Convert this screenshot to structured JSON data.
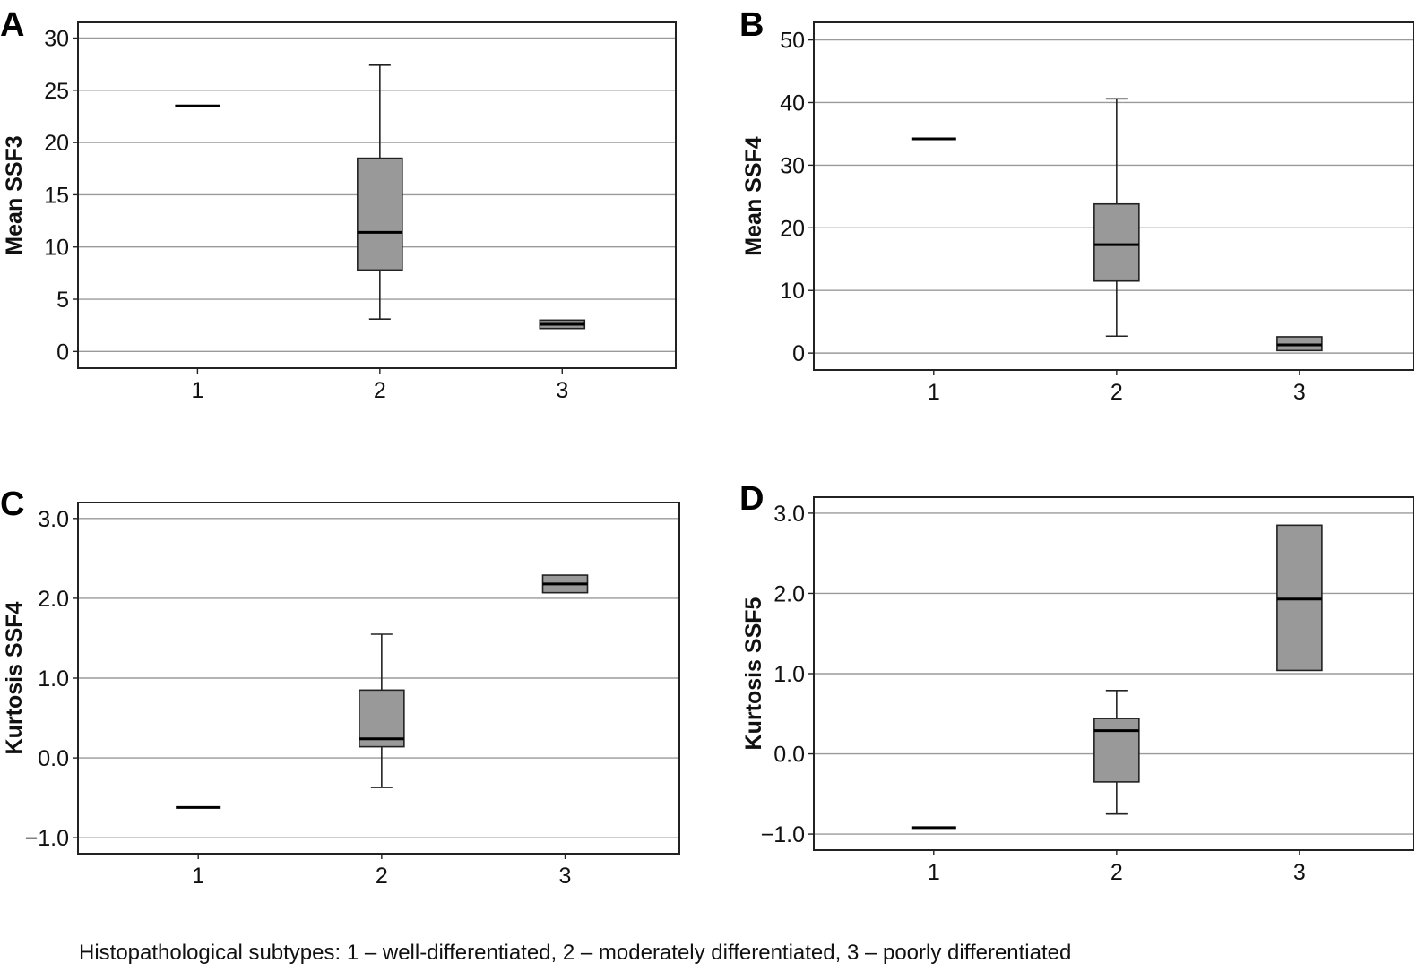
{
  "caption": "Histopathological subtypes: 1 – well-differentiated, 2 – moderately differentiated, 3 – poorly differentiated",
  "colors": {
    "box_fill": "#999999",
    "grid": "#9a9a9a",
    "stroke": "#222222"
  },
  "chart_data": [
    {
      "type": "boxplot",
      "panel": "A",
      "ylabel": "Mean SSF3",
      "categories": [
        "1",
        "2",
        "3"
      ],
      "yticks": [
        "0",
        "5",
        "10",
        "15",
        "20",
        "25",
        "30"
      ],
      "ytick_values": [
        0,
        5,
        10,
        15,
        20,
        25,
        30
      ],
      "ylim": [
        -1.6,
        31.5
      ],
      "grid": true,
      "boxes": [
        {
          "category": "1",
          "median": 23.5,
          "q1": 23.5,
          "q3": 23.5,
          "whisker_low": null,
          "whisker_high": null
        },
        {
          "category": "2",
          "median": 11.4,
          "q1": 7.8,
          "q3": 18.5,
          "whisker_low": 3.1,
          "whisker_high": 27.4
        },
        {
          "category": "3",
          "median": 2.6,
          "q1": 2.2,
          "q3": 3.0,
          "whisker_low": null,
          "whisker_high": null
        }
      ]
    },
    {
      "type": "boxplot",
      "panel": "B",
      "ylabel": "Mean SSF4",
      "categories": [
        "1",
        "2",
        "3"
      ],
      "yticks": [
        "0",
        "10",
        "20",
        "30",
        "40",
        "50"
      ],
      "ytick_values": [
        0,
        10,
        20,
        30,
        40,
        50
      ],
      "ylim": [
        -2.7,
        52.8
      ],
      "grid": true,
      "boxes": [
        {
          "category": "1",
          "median": 34.2,
          "q1": 34.2,
          "q3": 34.2,
          "whisker_low": null,
          "whisker_high": null
        },
        {
          "category": "2",
          "median": 17.3,
          "q1": 11.5,
          "q3": 23.8,
          "whisker_low": 2.7,
          "whisker_high": 40.6
        },
        {
          "category": "3",
          "median": 1.3,
          "q1": 0.4,
          "q3": 2.6,
          "whisker_low": null,
          "whisker_high": null
        }
      ]
    },
    {
      "type": "boxplot",
      "panel": "C",
      "ylabel": "Kurtosis SSF4",
      "categories": [
        "1",
        "2",
        "3"
      ],
      "yticks": [
        "−1.0",
        "0.0",
        "1.0",
        "2.0",
        "3.0"
      ],
      "ytick_values": [
        -1,
        0,
        1,
        2,
        3
      ],
      "ylim": [
        -1.2,
        3.2
      ],
      "grid": true,
      "boxes": [
        {
          "category": "1",
          "median": -0.62,
          "q1": -0.62,
          "q3": -0.62,
          "whisker_low": null,
          "whisker_high": null
        },
        {
          "category": "2",
          "median": 0.24,
          "q1": 0.14,
          "q3": 0.85,
          "whisker_low": -0.37,
          "whisker_high": 1.55
        },
        {
          "category": "3",
          "median": 2.18,
          "q1": 2.07,
          "q3": 2.29,
          "whisker_low": null,
          "whisker_high": null
        }
      ]
    },
    {
      "type": "boxplot",
      "panel": "D",
      "ylabel": "Kurtosis SSF5",
      "categories": [
        "1",
        "2",
        "3"
      ],
      "yticks": [
        "−1.0",
        "0.0",
        "1.0",
        "2.0",
        "3.0"
      ],
      "ytick_values": [
        -1,
        0,
        1,
        2,
        3
      ],
      "ylim": [
        -1.2,
        3.2
      ],
      "grid": true,
      "boxes": [
        {
          "category": "1",
          "median": -0.92,
          "q1": -0.92,
          "q3": -0.92,
          "whisker_low": null,
          "whisker_high": null
        },
        {
          "category": "2",
          "median": 0.29,
          "q1": -0.35,
          "q3": 0.44,
          "whisker_low": -0.75,
          "whisker_high": 0.79
        },
        {
          "category": "3",
          "median": 1.93,
          "q1": 1.04,
          "q3": 2.85,
          "whisker_low": null,
          "whisker_high": null
        }
      ]
    }
  ]
}
